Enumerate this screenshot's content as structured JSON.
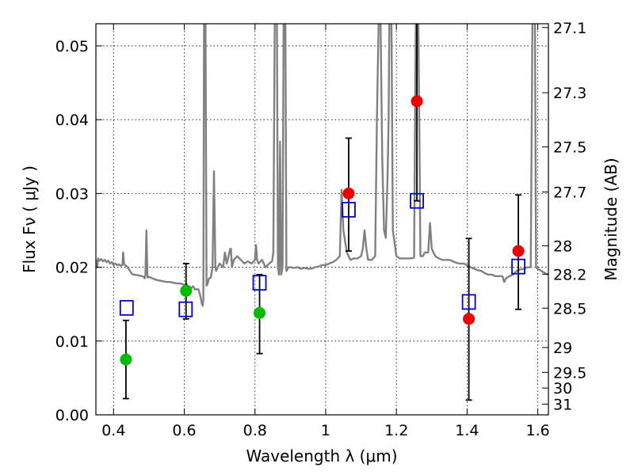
{
  "chart_data": {
    "type": "scatter",
    "title": "",
    "xlabel": "Wavelength  λ (μm)",
    "ylabel": "Flux  Fν  ( μJy )",
    "y2label": "Magnitude (AB)",
    "xlim": [
      0.35,
      1.63
    ],
    "ylim": [
      0.0,
      0.053
    ],
    "grid": true,
    "x_ticks": [
      {
        "value": 0.4,
        "label": "0.4"
      },
      {
        "value": 0.6,
        "label": "0.6"
      },
      {
        "value": 0.8,
        "label": "0.8"
      },
      {
        "value": 1.0,
        "label": "1"
      },
      {
        "value": 1.2,
        "label": "1.2"
      },
      {
        "value": 1.4,
        "label": "1.4"
      },
      {
        "value": 1.6,
        "label": "1.6"
      }
    ],
    "y_ticks": [
      {
        "value": 0.0,
        "label": "0.00"
      },
      {
        "value": 0.01,
        "label": "0.01"
      },
      {
        "value": 0.02,
        "label": "0.02"
      },
      {
        "value": 0.03,
        "label": "0.03"
      },
      {
        "value": 0.04,
        "label": "0.04"
      },
      {
        "value": 0.05,
        "label": "0.05"
      }
    ],
    "y2_ticks": [
      {
        "value": 27.1,
        "label": "27.1"
      },
      {
        "value": 27.3,
        "label": "27.3"
      },
      {
        "value": 27.5,
        "label": "27.5"
      },
      {
        "value": 27.7,
        "label": "27.7"
      },
      {
        "value": 28.0,
        "label": "28"
      },
      {
        "value": 28.2,
        "label": "28.2"
      },
      {
        "value": 28.5,
        "label": "28.5"
      },
      {
        "value": 29.0,
        "label": "29"
      },
      {
        "value": 29.5,
        "label": "29.5"
      },
      {
        "value": 30.0,
        "label": "30"
      },
      {
        "value": 31.0,
        "label": "31"
      }
    ],
    "model_spectrum": {
      "color": "#808080",
      "points": [
        [
          0.35,
          0.021
        ],
        [
          0.352,
          0.0205
        ],
        [
          0.354,
          0.02
        ],
        [
          0.356,
          0.0212
        ],
        [
          0.36,
          0.0209
        ],
        [
          0.365,
          0.0211
        ],
        [
          0.37,
          0.0208
        ],
        [
          0.375,
          0.021
        ],
        [
          0.38,
          0.0207
        ],
        [
          0.385,
          0.0209
        ],
        [
          0.39,
          0.0205
        ],
        [
          0.395,
          0.0207
        ],
        [
          0.4,
          0.0203
        ],
        [
          0.405,
          0.0205
        ],
        [
          0.41,
          0.0203
        ],
        [
          0.415,
          0.0204
        ],
        [
          0.42,
          0.0202
        ],
        [
          0.425,
          0.0203
        ],
        [
          0.427,
          0.022
        ],
        [
          0.43,
          0.0204
        ],
        [
          0.435,
          0.0202
        ],
        [
          0.44,
          0.02
        ],
        [
          0.445,
          0.0196
        ],
        [
          0.45,
          0.0192
        ],
        [
          0.455,
          0.019
        ],
        [
          0.46,
          0.019
        ],
        [
          0.47,
          0.0189
        ],
        [
          0.48,
          0.0188
        ],
        [
          0.485,
          0.0187
        ],
        [
          0.488,
          0.0185
        ],
        [
          0.49,
          0.019
        ],
        [
          0.493,
          0.025
        ],
        [
          0.496,
          0.0186
        ],
        [
          0.5,
          0.0187
        ],
        [
          0.51,
          0.0185
        ],
        [
          0.52,
          0.0183
        ],
        [
          0.53,
          0.0182
        ],
        [
          0.54,
          0.0181
        ],
        [
          0.55,
          0.018
        ],
        [
          0.56,
          0.018
        ],
        [
          0.57,
          0.0179
        ],
        [
          0.58,
          0.0178
        ],
        [
          0.59,
          0.0178
        ],
        [
          0.6,
          0.0176
        ],
        [
          0.605,
          0.0178
        ],
        [
          0.61,
          0.0175
        ],
        [
          0.62,
          0.0172
        ],
        [
          0.625,
          0.0174
        ],
        [
          0.63,
          0.017
        ],
        [
          0.64,
          0.017
        ],
        [
          0.645,
          0.0162
        ],
        [
          0.65,
          0.015
        ],
        [
          0.652,
          0.0148
        ],
        [
          0.654,
          0.0155
        ],
        [
          0.656,
          0.054
        ],
        [
          0.66,
          0.054
        ],
        [
          0.663,
          0.0175
        ],
        [
          0.666,
          0.0178
        ],
        [
          0.67,
          0.0185
        ],
        [
          0.675,
          0.0186
        ],
        [
          0.68,
          0.02
        ],
        [
          0.684,
          0.033
        ],
        [
          0.688,
          0.02
        ],
        [
          0.69,
          0.0195
        ],
        [
          0.7,
          0.0205
        ],
        [
          0.71,
          0.02
        ],
        [
          0.715,
          0.022
        ],
        [
          0.72,
          0.0205
        ],
        [
          0.73,
          0.0225
        ],
        [
          0.732,
          0.0225
        ],
        [
          0.735,
          0.02
        ],
        [
          0.74,
          0.021
        ],
        [
          0.75,
          0.0215
        ],
        [
          0.76,
          0.021
        ],
        [
          0.77,
          0.0205
        ],
        [
          0.78,
          0.0208
        ],
        [
          0.79,
          0.0205
        ],
        [
          0.8,
          0.021
        ],
        [
          0.803,
          0.023
        ],
        [
          0.806,
          0.021
        ],
        [
          0.81,
          0.0205
        ],
        [
          0.82,
          0.021
        ],
        [
          0.83,
          0.02
        ],
        [
          0.84,
          0.0205
        ],
        [
          0.848,
          0.0208
        ],
        [
          0.852,
          0.022
        ],
        [
          0.856,
          0.054
        ],
        [
          0.862,
          0.054
        ],
        [
          0.865,
          0.02
        ],
        [
          0.868,
          0.019
        ],
        [
          0.871,
          0.037
        ],
        [
          0.874,
          0.019
        ],
        [
          0.878,
          0.02
        ],
        [
          0.881,
          0.054
        ],
        [
          0.886,
          0.054
        ],
        [
          0.889,
          0.0195
        ],
        [
          0.895,
          0.02
        ],
        [
          0.9,
          0.02
        ],
        [
          0.91,
          0.0199
        ],
        [
          0.92,
          0.02
        ],
        [
          0.93,
          0.0198
        ],
        [
          0.94,
          0.0199
        ],
        [
          0.95,
          0.0198
        ],
        [
          0.96,
          0.0198
        ],
        [
          0.97,
          0.02
        ],
        [
          0.98,
          0.0201
        ],
        [
          0.99,
          0.0203
        ],
        [
          1.0,
          0.0203
        ],
        [
          1.01,
          0.0205
        ],
        [
          1.02,
          0.0207
        ],
        [
          1.03,
          0.021
        ],
        [
          1.04,
          0.0215
        ],
        [
          1.045,
          0.0305
        ],
        [
          1.05,
          0.025
        ],
        [
          1.06,
          0.022
        ],
        [
          1.07,
          0.021
        ],
        [
          1.08,
          0.0212
        ],
        [
          1.09,
          0.0212
        ],
        [
          1.1,
          0.0215
        ],
        [
          1.105,
          0.0225
        ],
        [
          1.11,
          0.025
        ],
        [
          1.115,
          0.0225
        ],
        [
          1.12,
          0.021
        ],
        [
          1.13,
          0.021
        ],
        [
          1.14,
          0.0215
        ],
        [
          1.145,
          0.04
        ],
        [
          1.15,
          0.054
        ],
        [
          1.155,
          0.054
        ],
        [
          1.16,
          0.035
        ],
        [
          1.165,
          0.025
        ],
        [
          1.17,
          0.024
        ],
        [
          1.175,
          0.032
        ],
        [
          1.178,
          0.04
        ],
        [
          1.18,
          0.054
        ],
        [
          1.186,
          0.054
        ],
        [
          1.19,
          0.025
        ],
        [
          1.2,
          0.0215
        ],
        [
          1.21,
          0.0212
        ],
        [
          1.22,
          0.0212
        ],
        [
          1.23,
          0.0212
        ],
        [
          1.24,
          0.0212
        ],
        [
          1.25,
          0.0213
        ],
        [
          1.255,
          0.054
        ],
        [
          1.262,
          0.054
        ],
        [
          1.265,
          0.038
        ],
        [
          1.268,
          0.0215
        ],
        [
          1.275,
          0.0215
        ],
        [
          1.28,
          0.022
        ],
        [
          1.29,
          0.022
        ],
        [
          1.295,
          0.026
        ],
        [
          1.3,
          0.0225
        ],
        [
          1.31,
          0.0215
        ],
        [
          1.32,
          0.0212
        ],
        [
          1.33,
          0.021
        ],
        [
          1.34,
          0.021
        ],
        [
          1.35,
          0.021
        ],
        [
          1.36,
          0.0208
        ],
        [
          1.37,
          0.0206
        ],
        [
          1.38,
          0.0205
        ],
        [
          1.39,
          0.0205
        ],
        [
          1.4,
          0.0203
        ],
        [
          1.41,
          0.02
        ],
        [
          1.42,
          0.0198
        ],
        [
          1.43,
          0.0196
        ],
        [
          1.44,
          0.0195
        ],
        [
          1.45,
          0.0192
        ],
        [
          1.46,
          0.019
        ],
        [
          1.47,
          0.019
        ],
        [
          1.48,
          0.0188
        ],
        [
          1.49,
          0.0188
        ],
        [
          1.5,
          0.0188
        ],
        [
          1.505,
          0.018
        ],
        [
          1.51,
          0.0185
        ],
        [
          1.52,
          0.0188
        ],
        [
          1.53,
          0.019
        ],
        [
          1.54,
          0.0195
        ],
        [
          1.55,
          0.0197
        ],
        [
          1.56,
          0.0198
        ],
        [
          1.57,
          0.02
        ],
        [
          1.58,
          0.02
        ],
        [
          1.585,
          0.054
        ],
        [
          1.592,
          0.054
        ],
        [
          1.595,
          0.02
        ],
        [
          1.6,
          0.0198
        ],
        [
          1.61,
          0.0195
        ],
        [
          1.62,
          0.0192
        ],
        [
          1.63,
          0.019
        ]
      ]
    },
    "error_bars": [
      {
        "x": 0.435,
        "low": 0.0022,
        "high": 0.0128
      },
      {
        "x": 0.605,
        "low": 0.013,
        "high": 0.0205
      },
      {
        "x": 0.813,
        "low": 0.0083,
        "high": 0.019
      },
      {
        "x": 1.065,
        "low": 0.0222,
        "high": 0.0375
      },
      {
        "x": 1.258,
        "low": 0.029,
        "high": 0.054
      },
      {
        "x": 1.405,
        "low": 0.002,
        "high": 0.0239
      },
      {
        "x": 1.545,
        "low": 0.0143,
        "high": 0.0298
      }
    ],
    "series": [
      {
        "marker": "circle",
        "color": "#00bb00",
        "points": [
          [
            0.435,
            0.0075
          ],
          [
            0.605,
            0.0168
          ],
          [
            0.813,
            0.0138
          ]
        ]
      },
      {
        "marker": "circle",
        "color": "#ee0000",
        "points": [
          [
            1.065,
            0.03
          ],
          [
            1.258,
            0.0425
          ],
          [
            1.405,
            0.013
          ],
          [
            1.545,
            0.0222
          ]
        ]
      },
      {
        "marker": "square",
        "color": "#0000cc",
        "points": [
          [
            0.437,
            0.0145
          ],
          [
            0.604,
            0.0143
          ],
          [
            0.813,
            0.0179
          ],
          [
            1.065,
            0.0278
          ],
          [
            1.258,
            0.029
          ],
          [
            1.405,
            0.0153
          ],
          [
            1.545,
            0.0201
          ]
        ]
      }
    ]
  }
}
